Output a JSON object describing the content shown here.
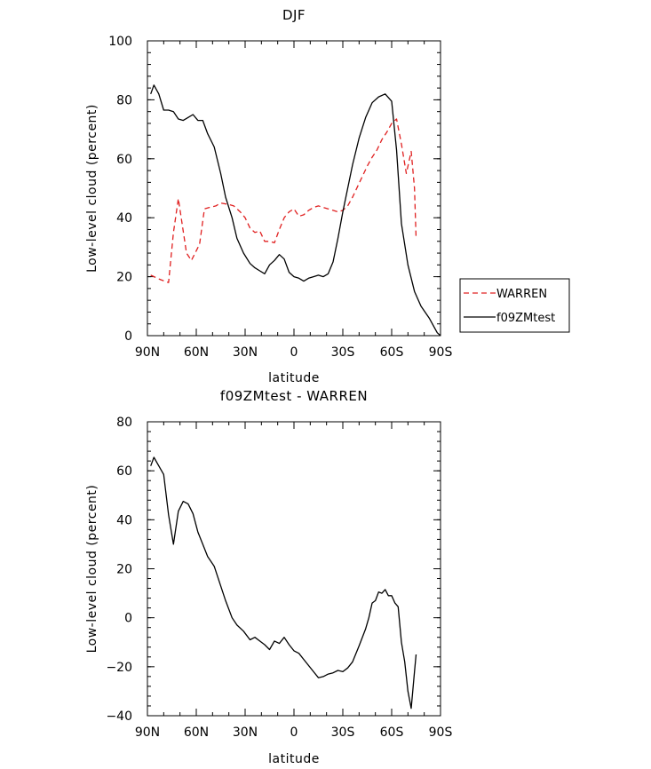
{
  "chart_data": [
    {
      "type": "line",
      "title": "DJF",
      "xlabel": "latitude",
      "ylabel": "Low-level cloud (percent)",
      "xlim": [
        90,
        -90
      ],
      "ylim": [
        0,
        100
      ],
      "x_ticks": [
        90,
        60,
        30,
        0,
        -30,
        -60,
        -90
      ],
      "x_tick_labels": [
        "90N",
        "60N",
        "30N",
        "0",
        "30S",
        "60S",
        "90S"
      ],
      "y_ticks": [
        0,
        20,
        40,
        60,
        80,
        100
      ],
      "y_tick_labels": [
        "0",
        "20",
        "40",
        "60",
        "80",
        "100"
      ],
      "legend": "right-outside",
      "series": [
        {
          "name": "WARREN",
          "color": "#e02020",
          "dash": "dashed",
          "x": [
            88,
            82,
            77,
            74,
            71,
            66,
            63,
            58,
            55,
            52,
            48,
            45,
            40,
            37,
            33,
            30,
            27,
            24,
            21,
            18,
            15,
            12,
            9,
            6,
            3,
            0,
            -3,
            -6,
            -9,
            -12,
            -15,
            -18,
            -21,
            -24,
            -27,
            -30,
            -33,
            -36,
            -39,
            -42,
            -45,
            -48,
            -51,
            -54,
            -57,
            -60,
            -63,
            -66,
            -69,
            -72,
            -74,
            -75
          ],
          "y": [
            20.5,
            19.0,
            18.0,
            35.0,
            46.5,
            28.0,
            25.5,
            31.0,
            43.0,
            43.5,
            44.0,
            45.0,
            44.5,
            44.0,
            42.0,
            40.0,
            36.5,
            35.0,
            35.5,
            32.0,
            32.0,
            31.5,
            36.0,
            40.0,
            42.0,
            43.0,
            40.5,
            41.0,
            42.5,
            43.5,
            44.0,
            43.5,
            43.0,
            42.5,
            42.0,
            42.5,
            44.0,
            47.0,
            50.5,
            54.0,
            57.5,
            60.5,
            63.0,
            66.5,
            69.0,
            72.0,
            73.5,
            65.0,
            55.0,
            62.5,
            50.0,
            33.0
          ]
        },
        {
          "name": "f09ZMtest",
          "color": "#000000",
          "dash": "solid",
          "x": [
            88,
            86,
            83,
            80,
            77,
            74,
            71,
            68,
            65,
            62,
            59,
            56,
            53,
            49,
            45,
            42,
            38,
            35,
            31,
            27,
            24,
            21,
            18,
            15,
            12,
            9,
            6,
            3,
            0,
            -3,
            -6,
            -9,
            -12,
            -15,
            -18,
            -21,
            -24,
            -27,
            -30,
            -33,
            -36,
            -40,
            -44,
            -48,
            -52,
            -56,
            -60,
            -63,
            -66,
            -70,
            -74,
            -78,
            -83,
            -88,
            -90
          ],
          "y": [
            82.0,
            85.0,
            82.0,
            76.5,
            76.5,
            76.0,
            73.5,
            73.0,
            74.0,
            75.0,
            73.0,
            73.0,
            68.5,
            64.0,
            55.0,
            47.0,
            40.0,
            33.0,
            28.0,
            24.5,
            23.0,
            22.0,
            21.0,
            24.0,
            25.5,
            27.5,
            26.0,
            21.5,
            20.0,
            19.5,
            18.5,
            19.5,
            20.0,
            20.5,
            20.0,
            21.0,
            25.0,
            33.0,
            42.0,
            50.0,
            58.0,
            67.0,
            74.0,
            79.0,
            81.0,
            82.0,
            79.5,
            63.0,
            38.0,
            24.0,
            15.0,
            10.0,
            6.0,
            1.0,
            0.0
          ]
        }
      ]
    },
    {
      "type": "line",
      "title": "f09ZMtest - WARREN",
      "xlabel": "latitude",
      "ylabel": "Low-level cloud (percent)",
      "xlim": [
        90,
        -90
      ],
      "ylim": [
        -40,
        80
      ],
      "x_ticks": [
        90,
        60,
        30,
        0,
        -30,
        -60,
        -90
      ],
      "x_tick_labels": [
        "90N",
        "60N",
        "30N",
        "0",
        "30S",
        "60S",
        "90S"
      ],
      "y_ticks": [
        -40,
        -20,
        0,
        20,
        40,
        60,
        80
      ],
      "y_tick_labels": [
        "−40",
        "−20",
        "0",
        "20",
        "40",
        "60",
        "80"
      ],
      "series": [
        {
          "color": "#000000",
          "dash": "solid",
          "x": [
            88,
            86,
            83,
            80,
            77,
            74,
            71,
            68,
            65,
            62,
            59,
            56,
            53,
            49,
            45,
            42,
            38,
            35,
            31,
            27,
            24,
            21,
            18,
            15,
            12,
            9,
            6,
            3,
            0,
            -3,
            -6,
            -9,
            -12,
            -15,
            -18,
            -21,
            -24,
            -27,
            -30,
            -33,
            -36,
            -40,
            -44,
            -46,
            -48,
            -50,
            -52,
            -54,
            -56,
            -58,
            -60,
            -62,
            -64,
            -66,
            -68,
            -70,
            -72,
            -74,
            -75
          ],
          "y": [
            62.0,
            65.5,
            62.0,
            58.5,
            42.0,
            30.0,
            43.5,
            47.5,
            46.5,
            42.5,
            35.0,
            30.0,
            25.0,
            21.0,
            13.0,
            7.0,
            0.0,
            -3.0,
            -5.5,
            -9.0,
            -8.0,
            -9.5,
            -11.0,
            -13.0,
            -9.5,
            -10.5,
            -8.0,
            -11.0,
            -13.5,
            -14.5,
            -17.0,
            -19.5,
            -22.0,
            -24.5,
            -24.0,
            -23.0,
            -22.5,
            -21.5,
            -22.0,
            -20.5,
            -18.0,
            -11.5,
            -4.5,
            0.0,
            6.0,
            7.0,
            10.5,
            10.0,
            11.5,
            9.0,
            9.0,
            6.0,
            4.5,
            -10.0,
            -18.0,
            -30.0,
            -37.0,
            -22.0,
            -15.0
          ]
        }
      ]
    }
  ]
}
